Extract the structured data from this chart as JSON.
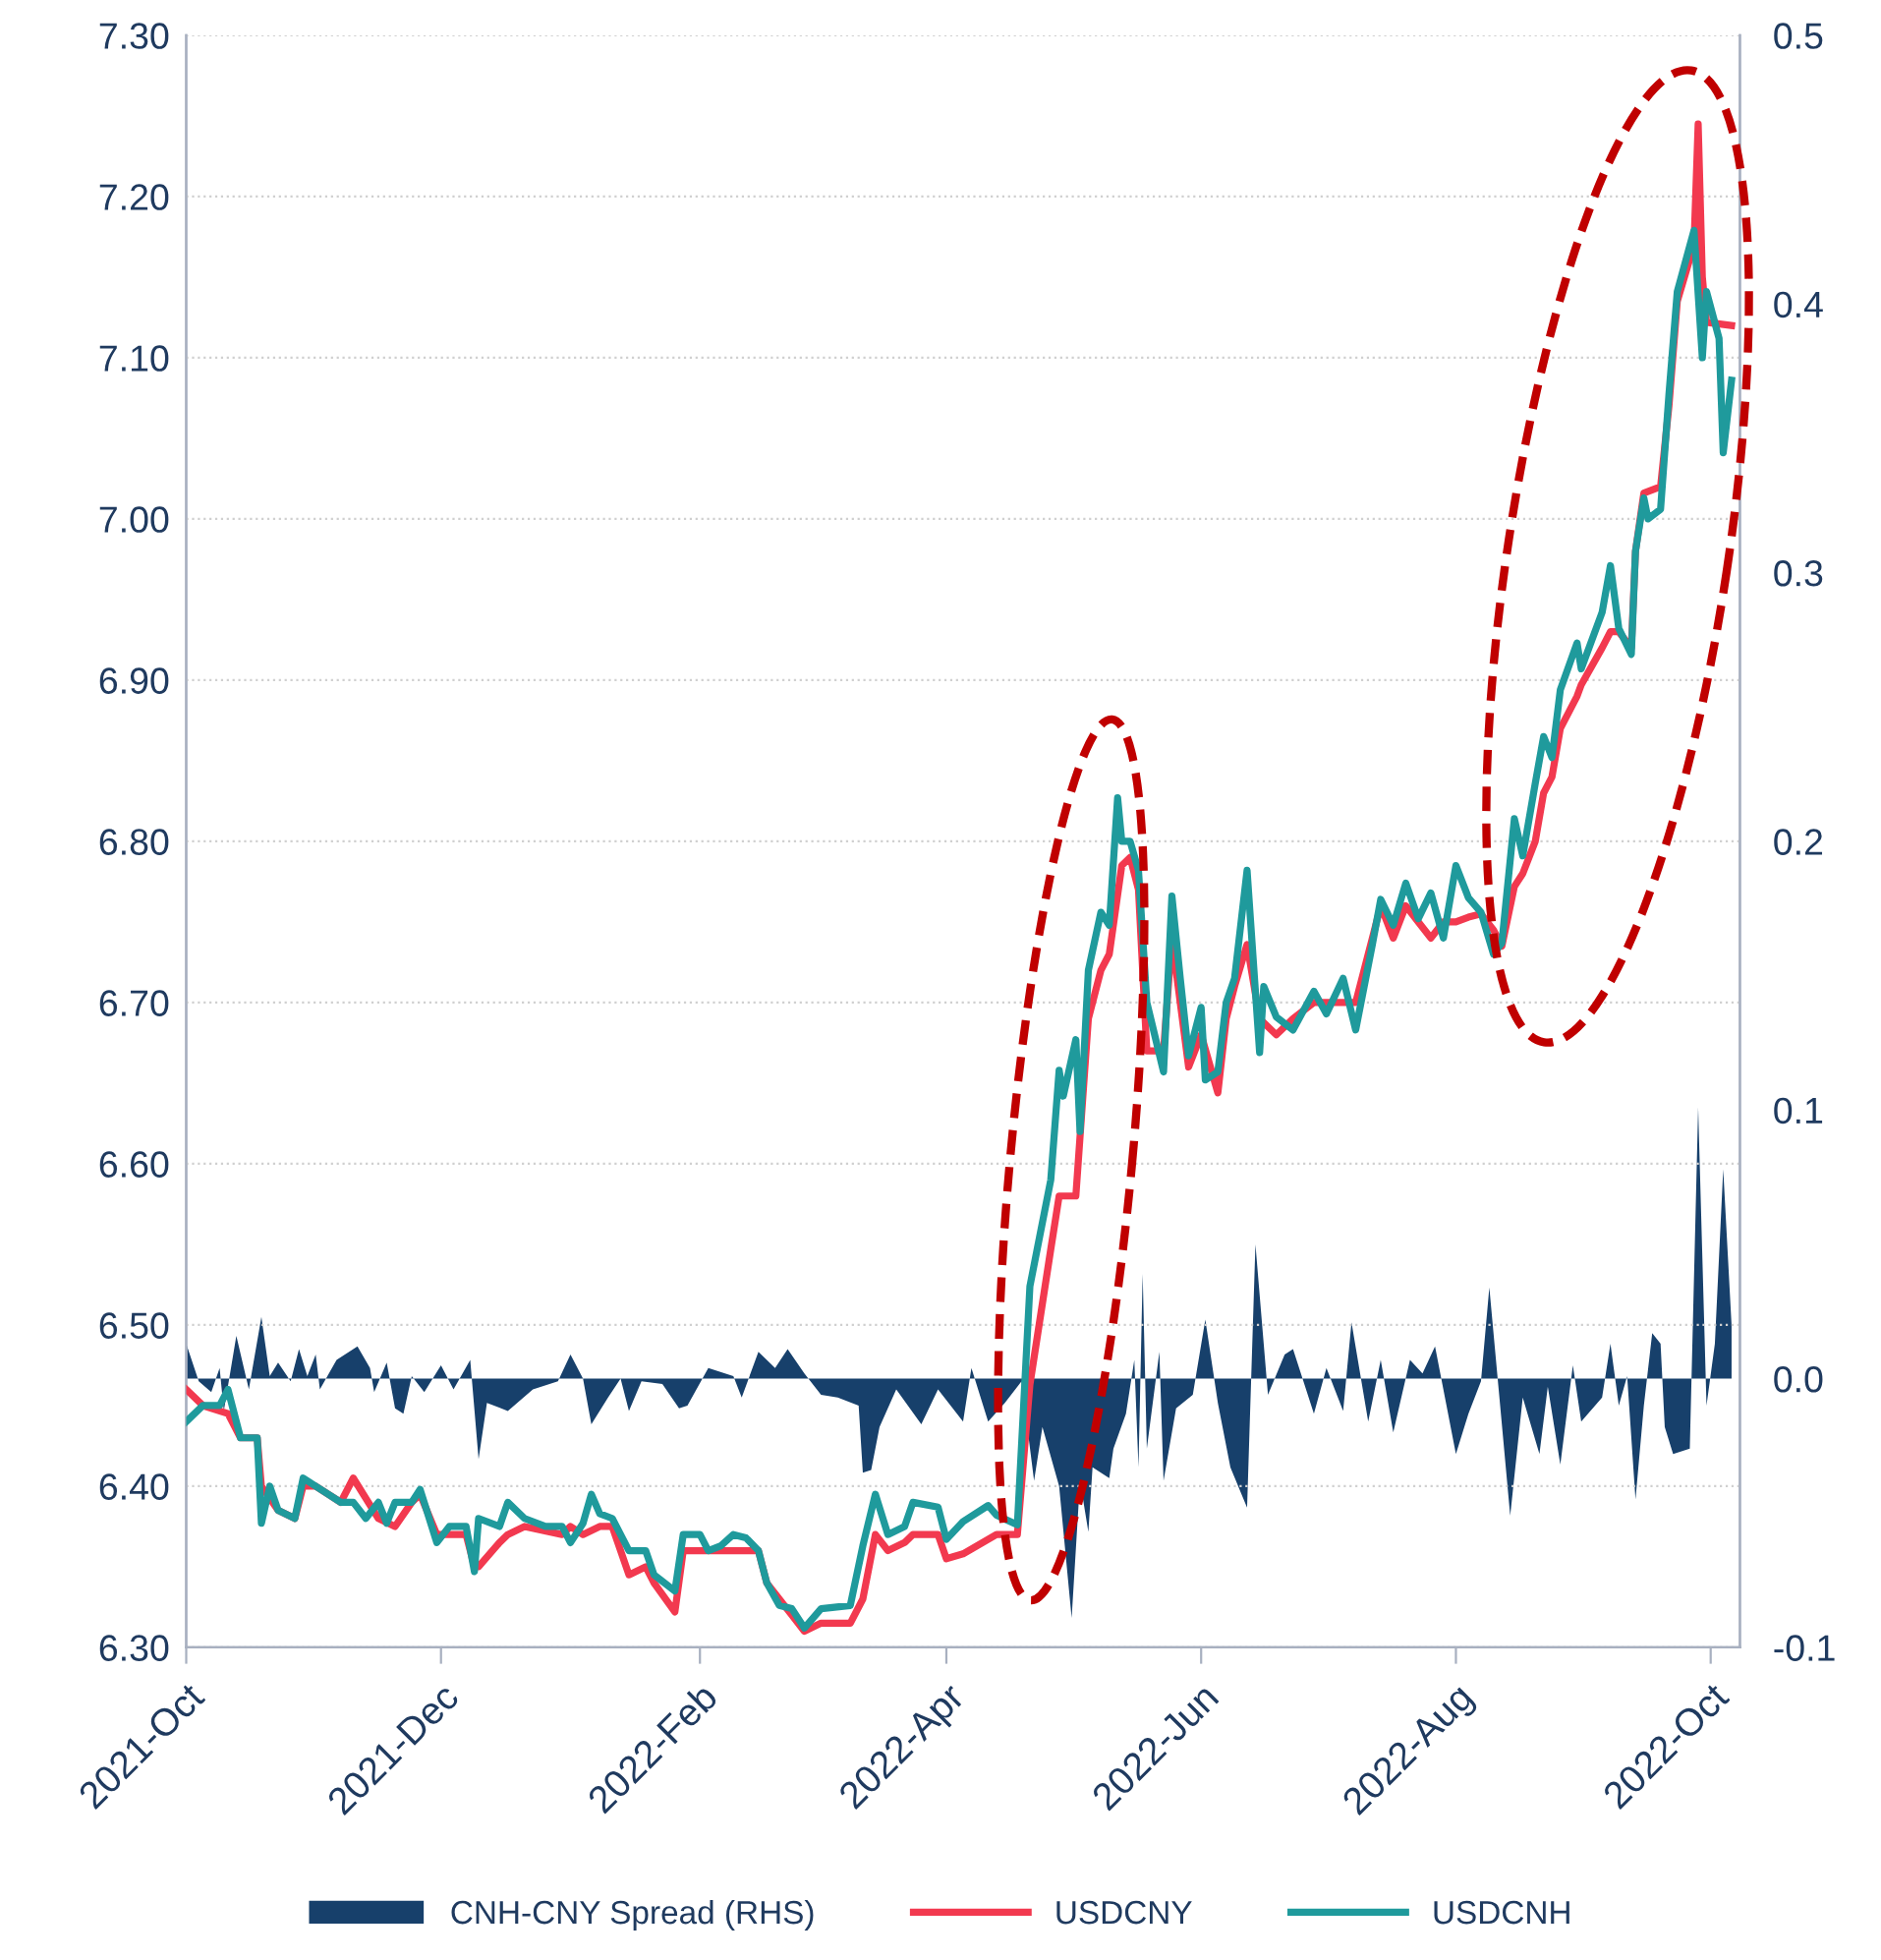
{
  "chart_data": {
    "type": "line",
    "xlim": [
      "2021-10-01",
      "2022-10-08"
    ],
    "xticks": [
      {
        "value": "2021-10-01",
        "label": "2021-Oct"
      },
      {
        "value": "2021-12-01",
        "label": "2021-Dec"
      },
      {
        "value": "2022-02-01",
        "label": "2022-Feb"
      },
      {
        "value": "2022-04-01",
        "label": "2022-Apr"
      },
      {
        "value": "2022-06-01",
        "label": "2022-Jun"
      },
      {
        "value": "2022-08-01",
        "label": "2022-Aug"
      },
      {
        "value": "2022-10-01",
        "label": "2022-Oct"
      }
    ],
    "ylim": [
      6.3,
      7.3
    ],
    "yticks": [
      {
        "value": 6.3,
        "label": "6.30"
      },
      {
        "value": 6.4,
        "label": "6.40"
      },
      {
        "value": 6.5,
        "label": "6.50"
      },
      {
        "value": 6.6,
        "label": "6.60"
      },
      {
        "value": 6.7,
        "label": "6.70"
      },
      {
        "value": 6.8,
        "label": "6.80"
      },
      {
        "value": 6.9,
        "label": "6.90"
      },
      {
        "value": 7.0,
        "label": "7.00"
      },
      {
        "value": 7.1,
        "label": "7.10"
      },
      {
        "value": 7.2,
        "label": "7.20"
      },
      {
        "value": 7.3,
        "label": "7.30"
      }
    ],
    "y2lim": [
      -0.1,
      0.5
    ],
    "y2ticks": [
      -0.1,
      {
        "value": 0,
        "label": "0.0"
      },
      0.1,
      0.2,
      0.3,
      0.4,
      0.5
    ],
    "grid": "y",
    "legend": "bottom",
    "marker": "none",
    "line_style": "solid",
    "series": [
      {
        "name": "CNH-CNY Spread (RHS)",
        "type": "area",
        "axis": "y2",
        "color": "#17406b",
        "x": [
          "2021-10-01",
          "2021-10-04",
          "2021-10-07",
          "2021-10-09",
          "2021-10-10",
          "2021-10-13",
          "2021-10-16",
          "2021-10-19",
          "2021-10-21",
          "2021-10-23",
          "2021-10-26",
          "2021-10-28",
          "2021-10-30",
          "2021-11-01",
          "2021-11-02",
          "2021-11-06",
          "2021-11-11",
          "2021-11-14",
          "2021-11-15",
          "2021-11-18",
          "2021-11-20",
          "2021-11-22",
          "2021-11-24",
          "2021-11-27",
          "2021-12-01",
          "2021-12-04",
          "2021-12-08",
          "2021-12-10",
          "2021-12-12",
          "2021-12-17",
          "2021-12-23",
          "2021-12-29",
          "2022-01-01",
          "2022-01-04",
          "2022-01-06",
          "2022-01-10",
          "2022-01-13",
          "2022-01-15",
          "2022-01-18",
          "2022-01-23",
          "2022-01-27",
          "2022-01-29",
          "2022-02-03",
          "2022-02-09",
          "2022-02-11",
          "2022-02-15",
          "2022-02-19",
          "2022-02-22",
          "2022-02-26",
          "2022-03-02",
          "2022-03-06",
          "2022-03-11",
          "2022-03-12",
          "2022-03-14",
          "2022-03-16",
          "2022-03-20",
          "2022-03-26",
          "2022-03-30",
          "2022-04-05",
          "2022-04-07",
          "2022-04-11",
          "2022-04-15",
          "2022-04-19",
          "2022-04-22",
          "2022-04-24",
          "2022-04-28",
          "2022-05-01",
          "2022-05-03",
          "2022-05-05",
          "2022-05-06",
          "2022-05-10",
          "2022-05-11",
          "2022-05-14",
          "2022-05-16",
          "2022-05-17",
          "2022-05-18",
          "2022-05-19",
          "2022-05-22",
          "2022-05-23",
          "2022-05-26",
          "2022-05-30",
          "2022-06-02",
          "2022-06-05",
          "2022-06-08",
          "2022-06-12",
          "2022-06-14",
          "2022-06-17",
          "2022-06-21",
          "2022-06-23",
          "2022-06-28",
          "2022-07-01",
          "2022-07-05",
          "2022-07-07",
          "2022-07-11",
          "2022-07-14",
          "2022-07-17",
          "2022-07-21",
          "2022-07-24",
          "2022-07-27",
          "2022-08-01",
          "2022-08-04",
          "2022-08-07",
          "2022-08-09",
          "2022-08-14",
          "2022-08-17",
          "2022-08-21",
          "2022-08-23",
          "2022-08-26",
          "2022-08-29",
          "2022-08-31",
          "2022-09-05",
          "2022-09-07",
          "2022-09-09",
          "2022-09-11",
          "2022-09-13",
          "2022-09-15",
          "2022-09-17",
          "2022-09-19",
          "2022-09-20",
          "2022-09-22",
          "2022-09-26",
          "2022-09-28",
          "2022-09-30",
          "2022-10-02",
          "2022-10-04",
          "2022-10-06"
        ],
        "values": [
          0.013,
          -0.001,
          -0.005,
          0.004,
          -0.012,
          0.016,
          -0.004,
          0.023,
          0.001,
          0.006,
          -0.001,
          0.011,
          0.001,
          0.009,
          -0.004,
          0.007,
          0.012,
          0.004,
          -0.005,
          0.006,
          -0.011,
          -0.013,
          0.001,
          -0.005,
          0.005,
          -0.004,
          0.007,
          -0.03,
          -0.009,
          -0.012,
          -0.004,
          -0.001,
          0.009,
          0,
          -0.017,
          -0.007,
          0,
          -0.012,
          -0.001,
          -0.002,
          -0.011,
          -0.01,
          0.004,
          0.001,
          -0.007,
          0.01,
          0.004,
          0.011,
          0.002,
          -0.006,
          -0.007,
          -0.01,
          -0.035,
          -0.034,
          -0.018,
          -0.004,
          -0.017,
          -0.004,
          -0.016,
          0.004,
          -0.016,
          -0.009,
          -0.001,
          -0.038,
          -0.018,
          -0.04,
          -0.089,
          -0.038,
          -0.057,
          -0.033,
          -0.037,
          -0.026,
          -0.013,
          0.007,
          -0.033,
          0.039,
          -0.026,
          0.01,
          -0.038,
          -0.011,
          -0.006,
          0.022,
          -0.009,
          -0.033,
          -0.048,
          0.05,
          -0.006,
          0.009,
          0.011,
          -0.013,
          0.004,
          -0.012,
          0.021,
          -0.016,
          0.007,
          -0.02,
          0.007,
          0.002,
          0.012,
          -0.028,
          -0.013,
          -0.001,
          0.034,
          -0.051,
          -0.007,
          -0.028,
          -0.003,
          -0.032,
          0.005,
          -0.016,
          -0.007,
          0.013,
          -0.01,
          0.001,
          -0.045,
          -0.01,
          0.017,
          0.013,
          -0.018,
          -0.028,
          -0.026,
          0.101,
          -0.01,
          0.013,
          0.078,
          0.02
        ]
      },
      {
        "name": "USDCNY",
        "color": "#f2394f",
        "x": [
          "2021-10-01",
          "2021-10-05",
          "2021-10-11",
          "2021-10-14",
          "2021-10-18",
          "2021-10-19",
          "2021-10-23",
          "2021-10-27",
          "2021-10-29",
          "2021-11-01",
          "2021-11-07",
          "2021-11-10",
          "2021-11-16",
          "2021-11-20",
          "2021-11-24",
          "2021-11-26",
          "2021-11-30",
          "2021-12-07",
          "2021-12-09",
          "2021-12-10",
          "2021-12-15",
          "2021-12-17",
          "2021-12-21",
          "2021-12-30",
          "2022-01-01",
          "2022-01-04",
          "2022-01-08",
          "2022-01-11",
          "2022-01-15",
          "2022-01-19",
          "2022-01-21",
          "2022-01-26",
          "2022-01-28",
          "2022-02-15",
          "2022-02-17",
          "2022-02-20",
          "2022-02-23",
          "2022-02-26",
          "2022-03-02",
          "2022-03-09",
          "2022-03-12",
          "2022-03-15",
          "2022-03-18",
          "2022-03-22",
          "2022-03-24",
          "2022-03-30",
          "2022-04-01",
          "2022-04-05",
          "2022-04-13",
          "2022-04-18",
          "2022-04-21",
          "2022-04-26",
          "2022-04-28",
          "2022-05-02",
          "2022-05-05",
          "2022-05-08",
          "2022-05-10",
          "2022-05-13",
          "2022-05-15",
          "2022-05-17",
          "2022-05-19",
          "2022-05-23",
          "2022-05-25",
          "2022-05-27",
          "2022-05-29",
          "2022-06-01",
          "2022-06-05",
          "2022-06-07",
          "2022-06-09",
          "2022-06-12",
          "2022-06-15",
          "2022-06-19",
          "2022-06-23",
          "2022-06-28",
          "2022-07-08",
          "2022-07-12",
          "2022-07-14",
          "2022-07-17",
          "2022-07-20",
          "2022-07-23",
          "2022-07-26",
          "2022-07-29",
          "2022-08-01",
          "2022-08-04",
          "2022-08-07",
          "2022-08-10",
          "2022-08-12",
          "2022-08-15",
          "2022-08-17",
          "2022-08-20",
          "2022-08-22",
          "2022-08-24",
          "2022-08-26",
          "2022-08-30",
          "2022-08-31",
          "2022-09-05",
          "2022-09-07",
          "2022-09-09",
          "2022-09-12",
          "2022-09-13",
          "2022-09-15",
          "2022-09-19",
          "2022-09-21",
          "2022-09-23",
          "2022-09-27",
          "2022-09-28",
          "2022-09-29",
          "2022-09-30",
          "2022-10-06"
        ],
        "values": [
          6.46,
          6.45,
          6.445,
          6.43,
          6.43,
          6.4,
          6.385,
          6.38,
          6.4,
          6.4,
          6.39,
          6.405,
          6.38,
          6.375,
          6.39,
          6.395,
          6.37,
          6.37,
          6.35,
          6.35,
          6.365,
          6.37,
          6.375,
          6.37,
          6.375,
          6.37,
          6.375,
          6.375,
          6.345,
          6.35,
          6.34,
          6.322,
          6.36,
          6.36,
          6.34,
          6.33,
          6.32,
          6.31,
          6.315,
          6.315,
          6.33,
          6.37,
          6.36,
          6.365,
          6.37,
          6.37,
          6.355,
          6.358,
          6.37,
          6.37,
          6.463,
          6.547,
          6.58,
          6.58,
          6.69,
          6.72,
          6.73,
          6.785,
          6.79,
          6.77,
          6.67,
          6.67,
          6.74,
          6.7,
          6.66,
          6.68,
          6.644,
          6.69,
          6.71,
          6.736,
          6.69,
          6.68,
          6.69,
          6.7,
          6.7,
          6.74,
          6.76,
          6.74,
          6.76,
          6.75,
          6.74,
          6.75,
          6.75,
          6.753,
          6.755,
          6.745,
          6.735,
          6.772,
          6.78,
          6.8,
          6.83,
          6.84,
          6.87,
          6.89,
          6.897,
          6.92,
          6.93,
          6.93,
          6.92,
          6.98,
          7.016,
          7.02,
          7.07,
          7.135,
          7.17,
          7.245,
          7.15,
          7.122,
          7.12
        ]
      },
      {
        "name": "USDCNH",
        "color": "#1f9a9c",
        "x": [
          "2021-10-01",
          "2021-10-05",
          "2021-10-09",
          "2021-10-11",
          "2021-10-14",
          "2021-10-18",
          "2021-10-19",
          "2021-10-21",
          "2021-10-23",
          "2021-10-27",
          "2021-10-29",
          "2021-11-01",
          "2021-11-07",
          "2021-11-10",
          "2021-11-13",
          "2021-11-16",
          "2021-11-18",
          "2021-11-20",
          "2021-11-24",
          "2021-11-26",
          "2021-11-30",
          "2021-12-03",
          "2021-12-07",
          "2021-12-09",
          "2021-12-10",
          "2021-12-15",
          "2021-12-17",
          "2021-12-21",
          "2021-12-26",
          "2021-12-30",
          "2022-01-01",
          "2022-01-04",
          "2022-01-06",
          "2022-01-08",
          "2022-01-11",
          "2022-01-15",
          "2022-01-19",
          "2022-01-21",
          "2022-01-26",
          "2022-01-28",
          "2022-02-01",
          "2022-02-03",
          "2022-02-06",
          "2022-02-09",
          "2022-02-12",
          "2022-02-15",
          "2022-02-17",
          "2022-02-20",
          "2022-02-23",
          "2022-02-26",
          "2022-03-02",
          "2022-03-09",
          "2022-03-12",
          "2022-03-15",
          "2022-03-18",
          "2022-03-22",
          "2022-03-24",
          "2022-03-30",
          "2022-04-01",
          "2022-04-05",
          "2022-04-11",
          "2022-04-13",
          "2022-04-18",
          "2022-04-21",
          "2022-04-26",
          "2022-04-28",
          "2022-04-29",
          "2022-05-02",
          "2022-05-03",
          "2022-05-05",
          "2022-05-08",
          "2022-05-10",
          "2022-05-12",
          "2022-05-13",
          "2022-05-15",
          "2022-05-17",
          "2022-05-19",
          "2022-05-23",
          "2022-05-25",
          "2022-05-27",
          "2022-05-29",
          "2022-06-01",
          "2022-06-02",
          "2022-06-05",
          "2022-06-07",
          "2022-06-09",
          "2022-06-12",
          "2022-06-15",
          "2022-06-16",
          "2022-06-19",
          "2022-06-23",
          "2022-06-28",
          "2022-07-01",
          "2022-07-05",
          "2022-07-08",
          "2022-07-12",
          "2022-07-14",
          "2022-07-17",
          "2022-07-20",
          "2022-07-23",
          "2022-07-26",
          "2022-07-29",
          "2022-08-01",
          "2022-08-04",
          "2022-08-07",
          "2022-08-10",
          "2022-08-12",
          "2022-08-15",
          "2022-08-17",
          "2022-08-20",
          "2022-08-22",
          "2022-08-24",
          "2022-08-26",
          "2022-08-30",
          "2022-08-31",
          "2022-09-05",
          "2022-09-07",
          "2022-09-09",
          "2022-09-12",
          "2022-09-13",
          "2022-09-15",
          "2022-09-16",
          "2022-09-19",
          "2022-09-21",
          "2022-09-23",
          "2022-09-27",
          "2022-09-29",
          "2022-09-30",
          "2022-10-03",
          "2022-10-04",
          "2022-10-06"
        ],
        "values": [
          6.44,
          6.45,
          6.45,
          6.46,
          6.43,
          6.43,
          6.377,
          6.4,
          6.385,
          6.38,
          6.405,
          6.4,
          6.39,
          6.39,
          6.38,
          6.39,
          6.377,
          6.39,
          6.39,
          6.398,
          6.365,
          6.375,
          6.375,
          6.347,
          6.38,
          6.375,
          6.39,
          6.38,
          6.375,
          6.375,
          6.365,
          6.377,
          6.395,
          6.383,
          6.38,
          6.36,
          6.36,
          6.345,
          6.335,
          6.37,
          6.37,
          6.36,
          6.363,
          6.37,
          6.368,
          6.36,
          6.34,
          6.326,
          6.324,
          6.312,
          6.324,
          6.326,
          6.363,
          6.395,
          6.37,
          6.375,
          6.39,
          6.387,
          6.367,
          6.378,
          6.388,
          6.382,
          6.376,
          6.524,
          6.59,
          6.658,
          6.642,
          6.677,
          6.62,
          6.72,
          6.756,
          6.748,
          6.827,
          6.8,
          6.8,
          6.782,
          6.7,
          6.657,
          6.766,
          6.715,
          6.667,
          6.697,
          6.652,
          6.657,
          6.7,
          6.715,
          6.782,
          6.669,
          6.71,
          6.691,
          6.683,
          6.707,
          6.693,
          6.715,
          6.683,
          6.736,
          6.764,
          6.748,
          6.774,
          6.752,
          6.768,
          6.74,
          6.785,
          6.765,
          6.756,
          6.73,
          6.737,
          6.814,
          6.791,
          6.836,
          6.865,
          6.852,
          6.894,
          6.923,
          6.907,
          6.942,
          6.971,
          6.932,
          6.916,
          6.98,
          7.013,
          7.0,
          7.006,
          7.077,
          7.141,
          7.179,
          7.1,
          7.141,
          7.112,
          7.041,
          7.086
        ]
      }
    ]
  }
}
